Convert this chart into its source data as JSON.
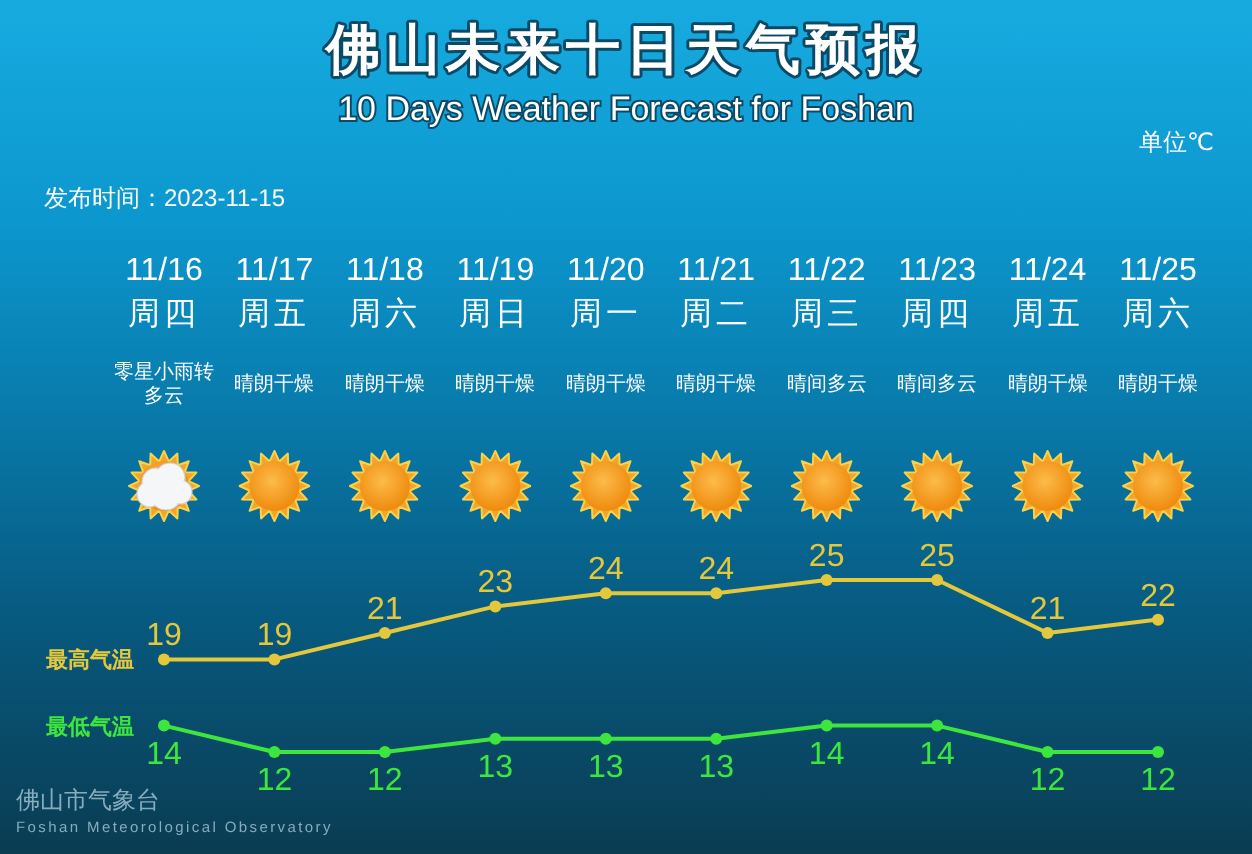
{
  "chart_data": {
    "type": "line",
    "title": "佛山未来十日天气预报",
    "subtitle": "10 Days Weather Forecast for Foshan",
    "categories": [
      "11/16",
      "11/17",
      "11/18",
      "11/19",
      "11/20",
      "11/21",
      "11/22",
      "11/23",
      "11/24",
      "11/25"
    ],
    "series": [
      {
        "name": "最高气温",
        "color": "#e4c83c",
        "values": [
          19,
          19,
          21,
          23,
          24,
          24,
          25,
          25,
          21,
          22
        ]
      },
      {
        "name": "最低气温",
        "color": "#3de63d",
        "values": [
          14,
          12,
          12,
          13,
          13,
          13,
          14,
          14,
          12,
          12
        ]
      }
    ],
    "data_labels": true,
    "marker": "circle",
    "line_style": "solid",
    "annotations": [
      "单位℃",
      "发布时间：2023-11-15",
      "周四",
      "周五",
      "周六",
      "周日",
      "周一",
      "周二",
      "周三",
      "周四",
      "周五",
      "周六",
      "零星小雨转多云",
      "晴朗干燥",
      "晴朗干燥",
      "晴朗干燥",
      "晴朗干燥",
      "晴朗干燥",
      "晴间多云",
      "晴间多云",
      "晴朗干燥",
      "晴朗干燥",
      "佛山市气象台",
      "Foshan Meteorological Observatory"
    ]
  }
}
